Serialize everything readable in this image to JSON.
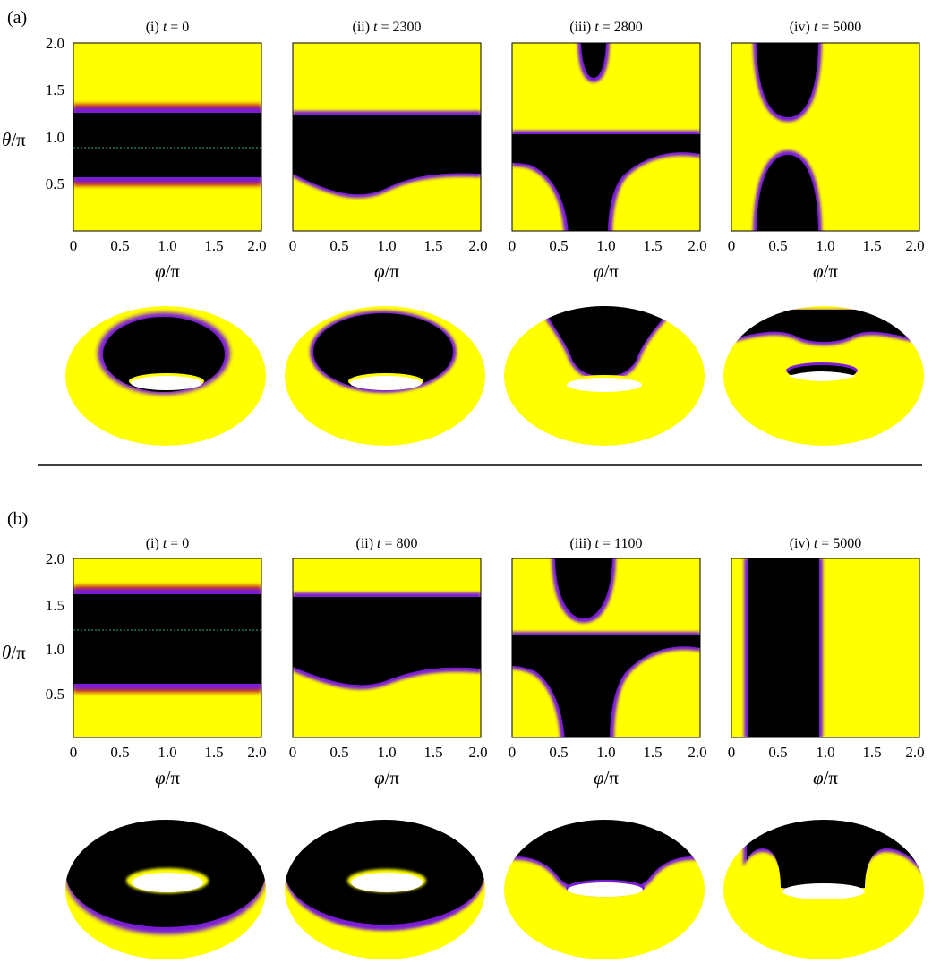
{
  "figure": {
    "sections": [
      {
        "label": "(a)",
        "panels": [
          {
            "prefix": "(i) ",
            "t": "t",
            "eq": " = ",
            "value": "0"
          },
          {
            "prefix": "(ii) ",
            "t": "t",
            "eq": " = ",
            "value": "2300"
          },
          {
            "prefix": "(iii) ",
            "t": "t",
            "eq": " = ",
            "value": "2800"
          },
          {
            "prefix": "(iv) ",
            "t": "t",
            "eq": " = ",
            "value": "5000"
          }
        ]
      },
      {
        "label": "(b)",
        "panels": [
          {
            "prefix": "(i) ",
            "t": "t",
            "eq": " = ",
            "value": "0"
          },
          {
            "prefix": "(ii) ",
            "t": "t",
            "eq": " = ",
            "value": "800"
          },
          {
            "prefix": "(iii) ",
            "t": "t",
            "eq": " = ",
            "value": "1100"
          },
          {
            "prefix": "(iv) ",
            "t": "t",
            "eq": " = ",
            "value": "5000"
          }
        ]
      }
    ],
    "y_axis_label": {
      "sym": "θ",
      "rest": "/π"
    },
    "x_axis_label": {
      "sym": "φ",
      "rest": "/π"
    },
    "y_ticks": [
      "2.0",
      "1.5",
      "1.0",
      "0.5"
    ],
    "x_ticks": [
      "0",
      "0.5",
      "1.0",
      "1.5",
      "2.0"
    ],
    "colors": {
      "field_high": "#ffff00",
      "field_low": "#000000",
      "interface": "#7a1fd6",
      "interface_outer": "#c4321c",
      "reference_line": "#2fb37f"
    }
  }
}
